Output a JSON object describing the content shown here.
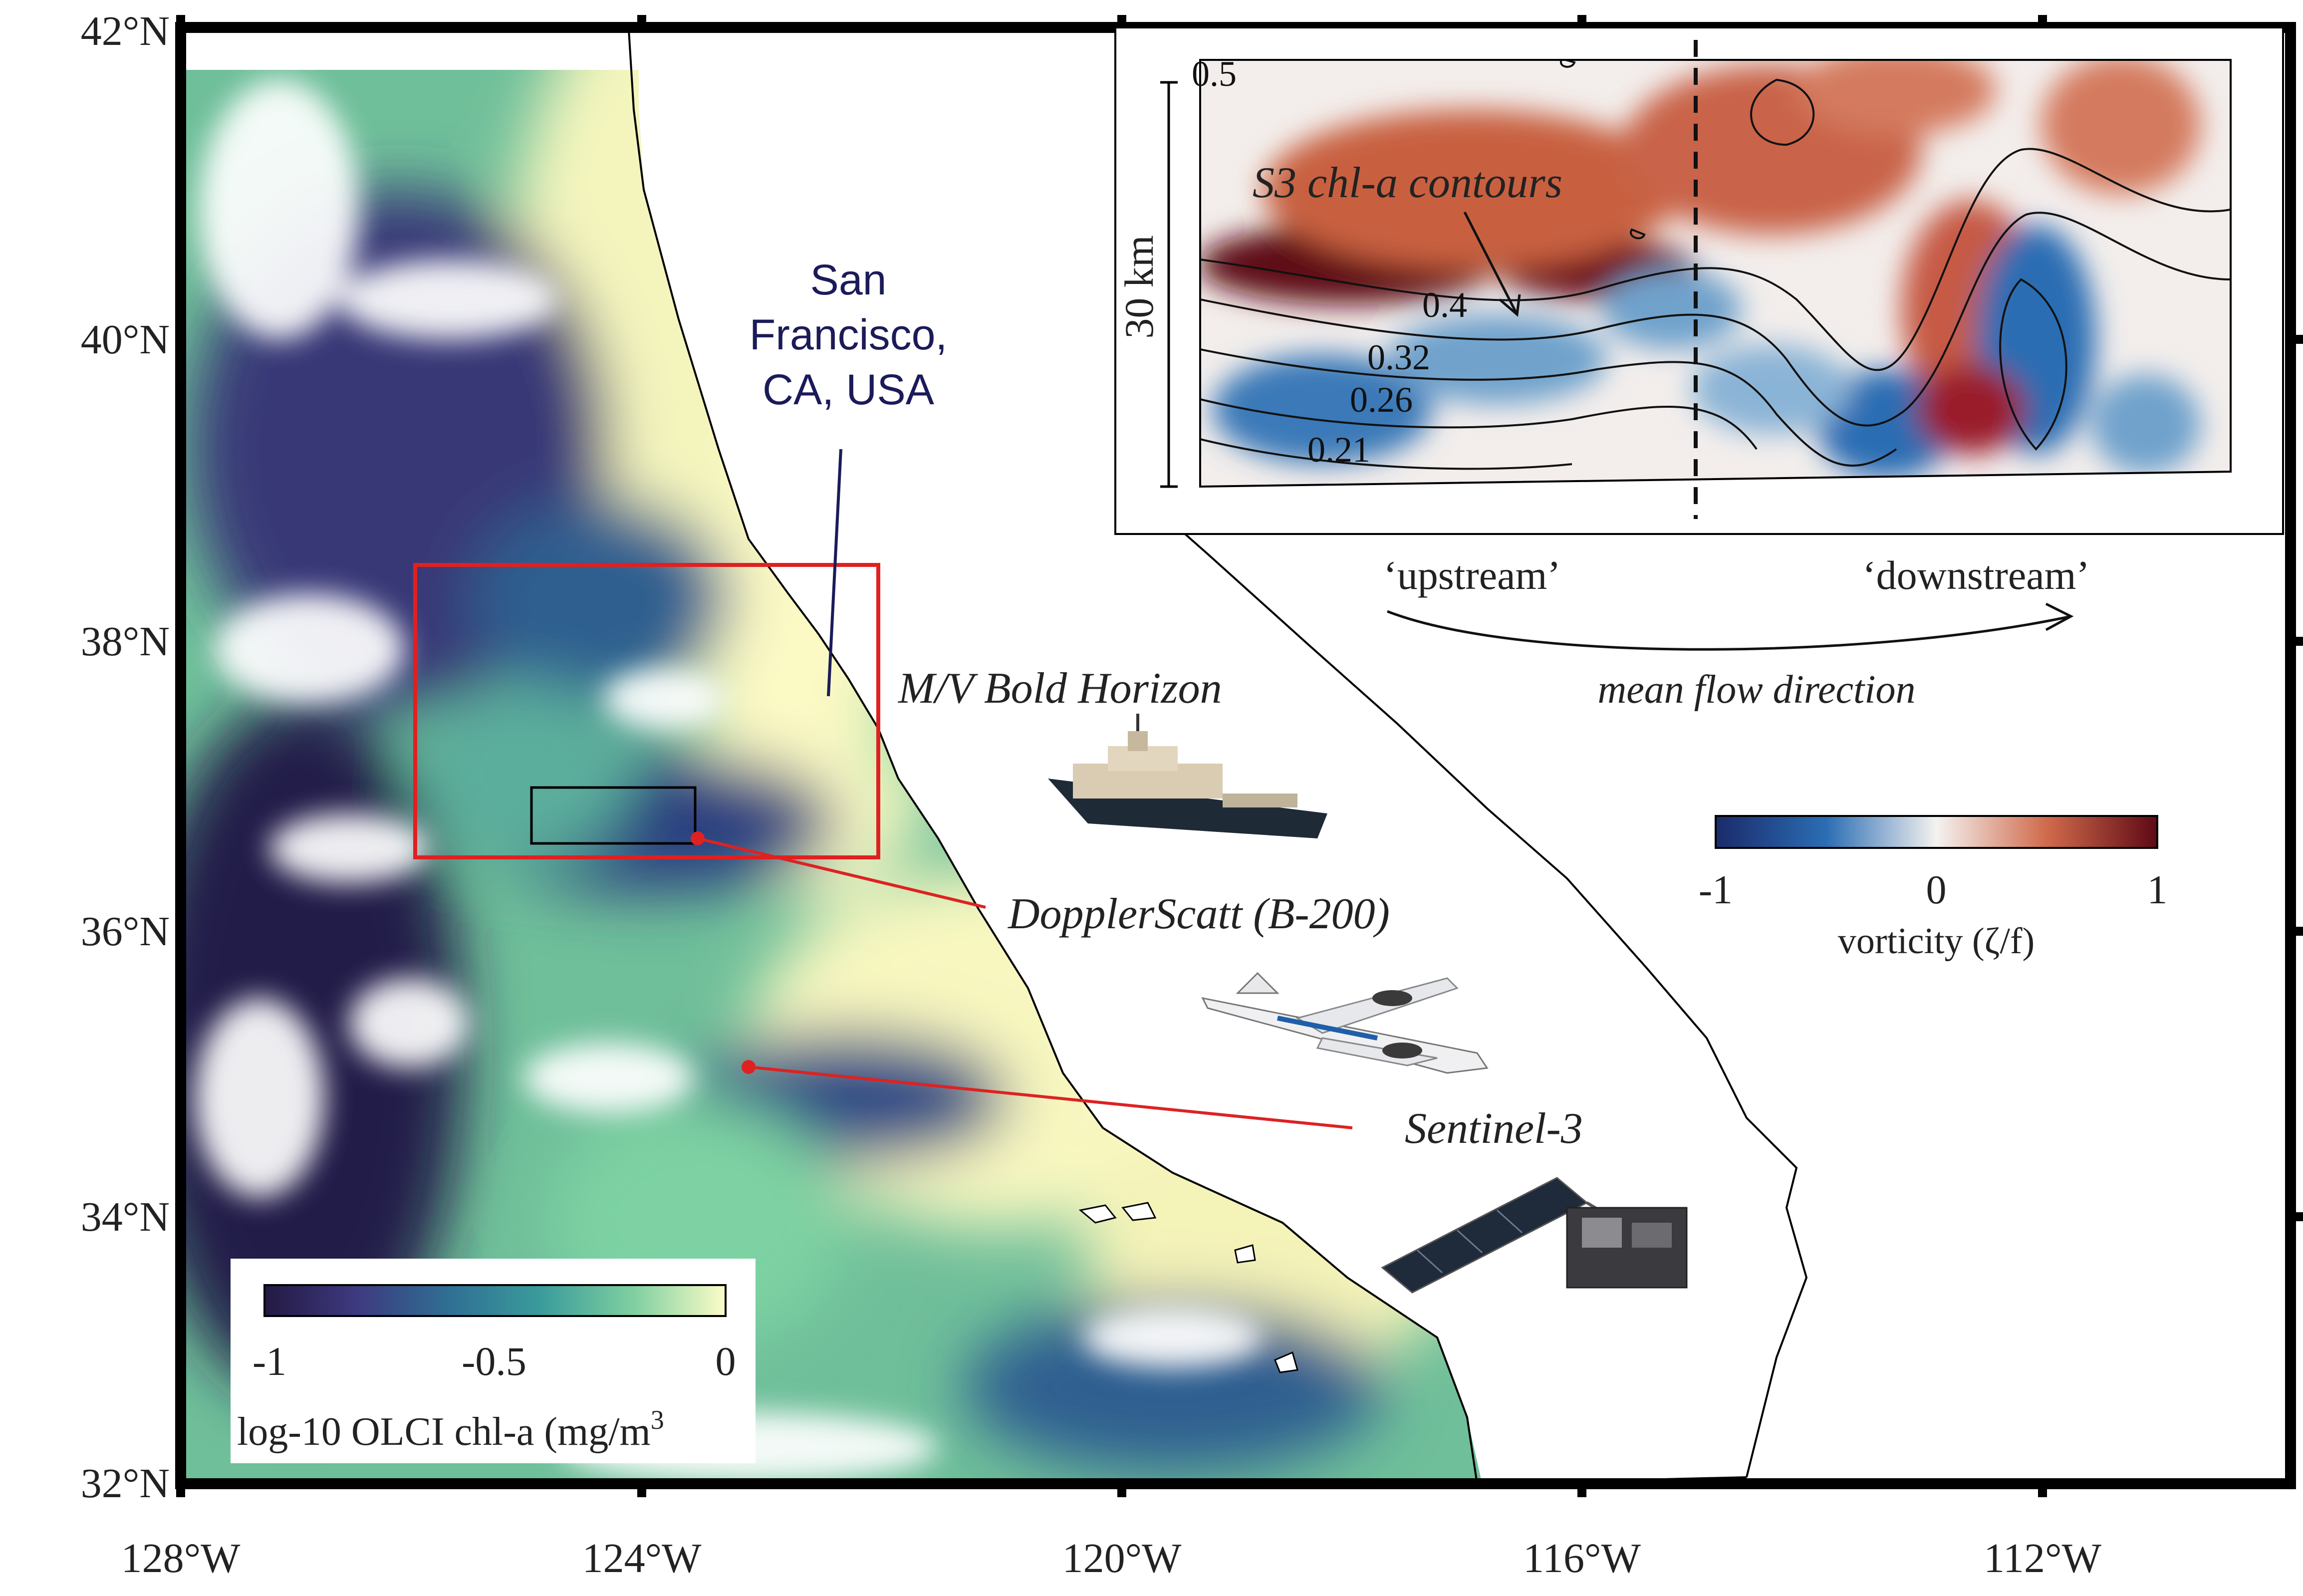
{
  "map": {
    "lat_labels": [
      "42°N",
      "40°N",
      "38°N",
      "36°N",
      "34°N",
      "32°N"
    ],
    "lon_labels": [
      "128°W",
      "124°W",
      "120°W",
      "116°W",
      "112°W"
    ],
    "city_label": [
      "San",
      "Francisco,",
      "CA, USA"
    ],
    "platforms": {
      "ship": "M/V Bold Horizon",
      "aircraft": "DopplerScatt (B-200)",
      "satellite": "Sentinel-3"
    },
    "chl_colorbar": {
      "ticks": [
        "-1",
        "-0.5",
        "0"
      ],
      "label": "log-10 OLCI chl-a (mg/m",
      "label_sup": "3",
      "colors": [
        "#231942",
        "#3d3a80",
        "#2f6f93",
        "#3a9c9b",
        "#7fcfa0",
        "#fdfcc8"
      ]
    },
    "vort_colorbar": {
      "ticks": [
        "-1",
        "0",
        "1"
      ],
      "label": "vorticity (ζ/f)",
      "colors": [
        "#1a2b6b",
        "#2b6db3",
        "#f4f2f0",
        "#d06a4b",
        "#5e0a15"
      ]
    },
    "inset": {
      "title": "S3 chl-a contours",
      "scale": "30 km",
      "contour_labels": [
        "0.5",
        "0.4",
        "0.32",
        "0.26",
        "0.21"
      ],
      "upstream": "‘upstream’",
      "downstream": "‘downstream’",
      "flow": "mean flow direction"
    },
    "colors": {
      "study_box": "#e02020",
      "pointer": "#dd2222",
      "frame": "#000000"
    }
  }
}
